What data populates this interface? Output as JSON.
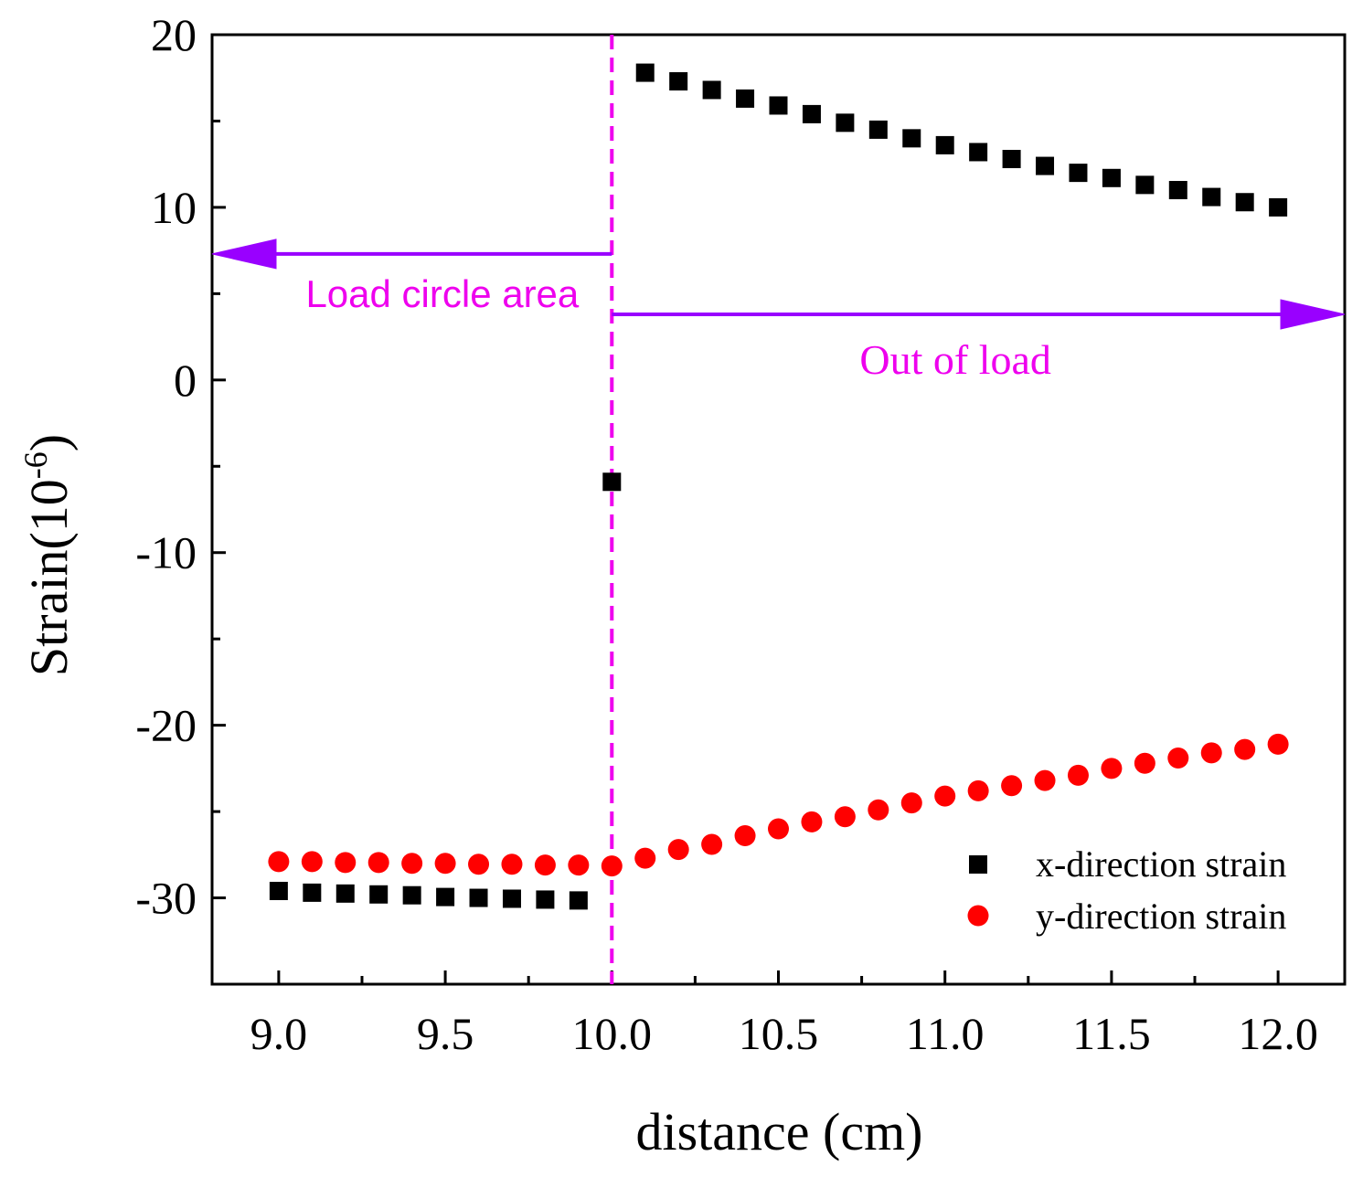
{
  "chart_data": {
    "type": "scatter",
    "xlabel": "distance (cm)",
    "ylabel_main": "Strain(10",
    "ylabel_sup": "-6",
    "ylabel_close": ")",
    "xlim": [
      8.8,
      12.2
    ],
    "ylim": [
      -35,
      20
    ],
    "xticks": [
      9.0,
      9.5,
      10.0,
      10.5,
      11.0,
      11.5,
      12.0
    ],
    "xtick_labels": [
      "9.0",
      "9.5",
      "10.0",
      "10.5",
      "11.0",
      "11.5",
      "12.0"
    ],
    "yticks": [
      -30,
      -20,
      -10,
      0,
      10,
      20
    ],
    "ytick_labels": [
      "-30",
      "-20",
      "-10",
      "0",
      "10",
      "20"
    ],
    "grid": false,
    "legend_position": "bottom-right",
    "series": [
      {
        "name": "x-direction strain",
        "marker": "square",
        "color": "#000000",
        "x": [
          9.0,
          9.1,
          9.2,
          9.3,
          9.4,
          9.5,
          9.6,
          9.7,
          9.8,
          9.9,
          10.0,
          10.1,
          10.2,
          10.3,
          10.4,
          10.5,
          10.6,
          10.7,
          10.8,
          10.9,
          11.0,
          11.1,
          11.2,
          11.3,
          11.4,
          11.5,
          11.6,
          11.7,
          11.8,
          11.9,
          12.0
        ],
        "y": [
          -29.6,
          -29.7,
          -29.75,
          -29.8,
          -29.85,
          -29.95,
          -30.0,
          -30.05,
          -30.1,
          -30.15,
          -5.9,
          17.8,
          17.3,
          16.8,
          16.3,
          15.9,
          15.4,
          14.9,
          14.5,
          14.0,
          13.6,
          13.2,
          12.8,
          12.4,
          12.0,
          11.7,
          11.3,
          11.0,
          10.6,
          10.3,
          10.0
        ]
      },
      {
        "name": "y-direction strain",
        "marker": "circle",
        "color": "#ff0000",
        "x": [
          9.0,
          9.1,
          9.2,
          9.3,
          9.4,
          9.5,
          9.6,
          9.7,
          9.8,
          9.9,
          10.0,
          10.1,
          10.2,
          10.3,
          10.4,
          10.5,
          10.6,
          10.7,
          10.8,
          10.9,
          11.0,
          11.1,
          11.2,
          11.3,
          11.4,
          11.5,
          11.6,
          11.7,
          11.8,
          11.9,
          12.0
        ],
        "y": [
          -27.9,
          -27.9,
          -27.95,
          -27.95,
          -28.0,
          -28.0,
          -28.05,
          -28.05,
          -28.1,
          -28.1,
          -28.15,
          -27.7,
          -27.2,
          -26.9,
          -26.4,
          -26.0,
          -25.6,
          -25.3,
          -24.9,
          -24.5,
          -24.1,
          -23.8,
          -23.5,
          -23.2,
          -22.9,
          -22.5,
          -22.2,
          -21.9,
          -21.6,
          -21.4,
          -21.1
        ]
      }
    ],
    "annotations": {
      "boundary_x": 10.0,
      "boundary_color": "#ee00ee",
      "arrow_color": "#9900ff",
      "text_color": "#ee00ee",
      "left_label": "Load circle area",
      "right_label": "Out of load",
      "left_arrow_y": 7.3,
      "right_arrow_y": 3.8
    }
  }
}
